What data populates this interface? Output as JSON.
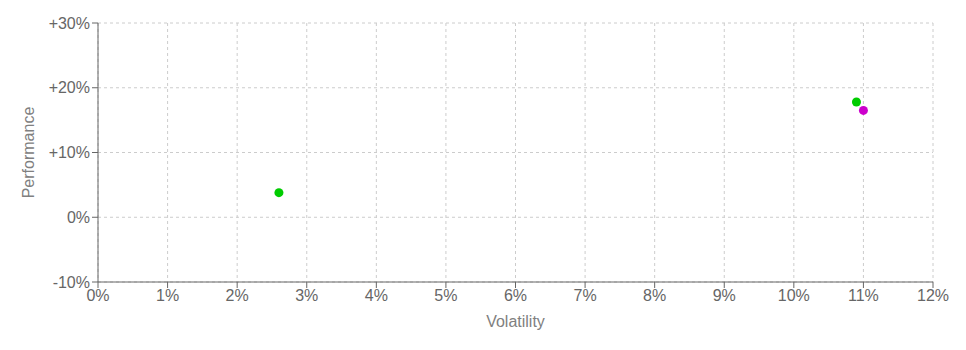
{
  "chart_data": {
    "type": "scatter",
    "x": [
      0.026,
      0.109,
      0.11
    ],
    "values": [
      0.038,
      0.178,
      0.165
    ],
    "colors": [
      "#00cc00",
      "#00cc00",
      "#cc00cc"
    ],
    "xlabel": "Volatility",
    "ylabel": "Performance",
    "xlim": [
      0,
      0.12
    ],
    "ylim": [
      -0.1,
      0.3
    ],
    "xticks": [
      {
        "value": 0.0,
        "label": "0%"
      },
      {
        "value": 0.01,
        "label": "1%"
      },
      {
        "value": 0.02,
        "label": "2%"
      },
      {
        "value": 0.03,
        "label": "3%"
      },
      {
        "value": 0.04,
        "label": "4%"
      },
      {
        "value": 0.05,
        "label": "5%"
      },
      {
        "value": 0.06,
        "label": "6%"
      },
      {
        "value": 0.07,
        "label": "7%"
      },
      {
        "value": 0.08,
        "label": "8%"
      },
      {
        "value": 0.09,
        "label": "9%"
      },
      {
        "value": 0.1,
        "label": "10%"
      },
      {
        "value": 0.11,
        "label": "11%"
      },
      {
        "value": 0.12,
        "label": "12%"
      }
    ],
    "yticks": [
      {
        "value": -0.1,
        "label": "-10%"
      },
      {
        "value": 0.0,
        "label": "0%"
      },
      {
        "value": 0.1,
        "label": "+10%"
      },
      {
        "value": 0.2,
        "label": "+20%"
      },
      {
        "value": 0.3,
        "label": "+30%"
      }
    ],
    "grid": true
  }
}
